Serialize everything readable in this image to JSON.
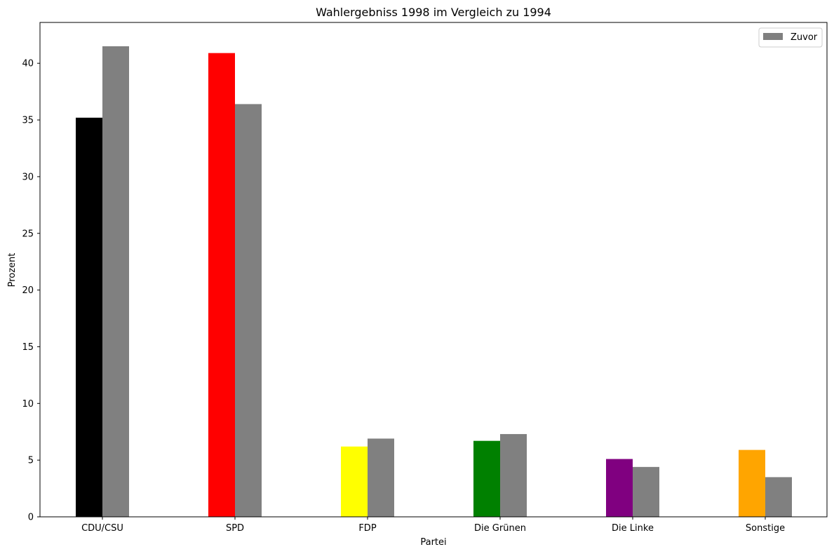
{
  "chart_data": {
    "type": "bar",
    "title": "Wahlergebniss 1998 im Vergleich zu 1994",
    "xlabel": "Partei",
    "ylabel": "Prozent",
    "categories": [
      "CDU/CSU",
      "SPD",
      "FDP",
      "Die Grünen",
      "Die Linke",
      "Sonstige"
    ],
    "series": [
      {
        "values": [
          35.2,
          40.9,
          6.2,
          6.7,
          5.1,
          5.9
        ],
        "colors": [
          "#000000",
          "#ff0000",
          "#ffff00",
          "#008000",
          "#800080",
          "#ffa500"
        ]
      },
      {
        "name": "Zuvor",
        "values": [
          41.5,
          36.4,
          6.9,
          7.3,
          4.4,
          3.5
        ],
        "color": "#808080"
      }
    ],
    "ylim": [
      0,
      43.6
    ],
    "yticks": [
      0,
      5,
      10,
      15,
      20,
      25,
      30,
      35,
      40
    ],
    "grid": false,
    "legend": {
      "position": "top-right",
      "entries": [
        "Zuvor"
      ]
    }
  }
}
